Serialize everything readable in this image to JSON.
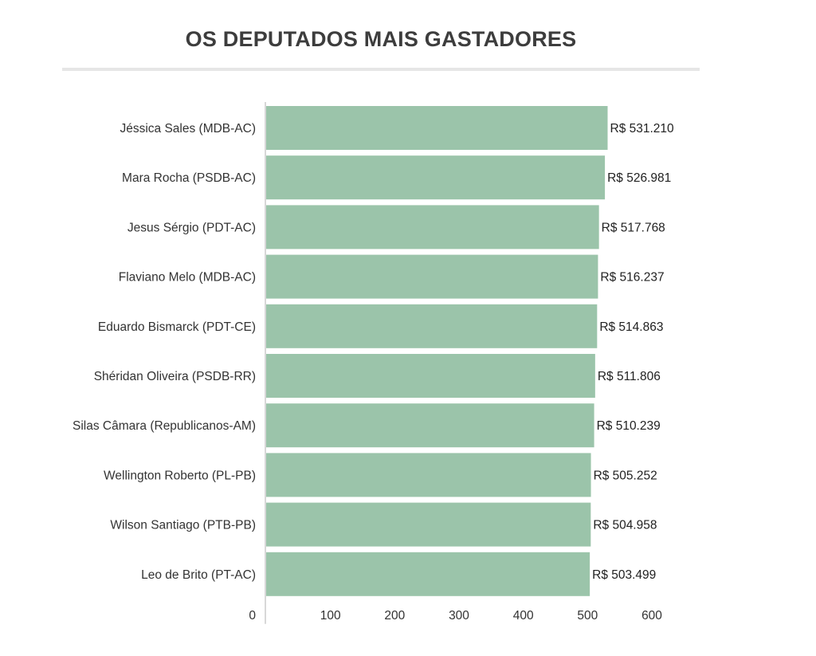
{
  "chart_data": {
    "type": "bar",
    "orientation": "horizontal",
    "title": "OS DEPUTADOS MAIS GASTADORES",
    "categories": [
      "Jéssica Sales (MDB-AC)",
      "Mara Rocha (PSDB-AC)",
      "Jesus Sérgio (PDT-AC)",
      "Flaviano Melo (MDB-AC)",
      "Eduardo Bismarck (PDT-CE)",
      "Shéridan Oliveira (PSDB-RR)",
      "Silas Câmara (Republicanos-AM)",
      "Wellington Roberto (PL-PB)",
      "Wilson Santiago (PTB-PB)",
      "Leo de Brito (PT-AC)"
    ],
    "values": [
      531.21,
      526.981,
      517.768,
      516.237,
      514.863,
      511.806,
      510.239,
      505.252,
      504.958,
      503.499
    ],
    "value_labels": [
      "R$ 531.210",
      "R$ 526.981",
      "R$ 517.768",
      "R$ 516.237",
      "R$ 514.863",
      "R$ 511.806",
      "R$ 510.239",
      "R$ 505.252",
      "R$ 504.958",
      "R$ 503.499"
    ],
    "x_ticks": [
      0,
      100,
      200,
      300,
      400,
      500,
      600
    ],
    "xlim": [
      0,
      600
    ],
    "grid": false,
    "legend": "none",
    "bar_color": "#9bc4aa",
    "axis_color": "#cccccc"
  }
}
